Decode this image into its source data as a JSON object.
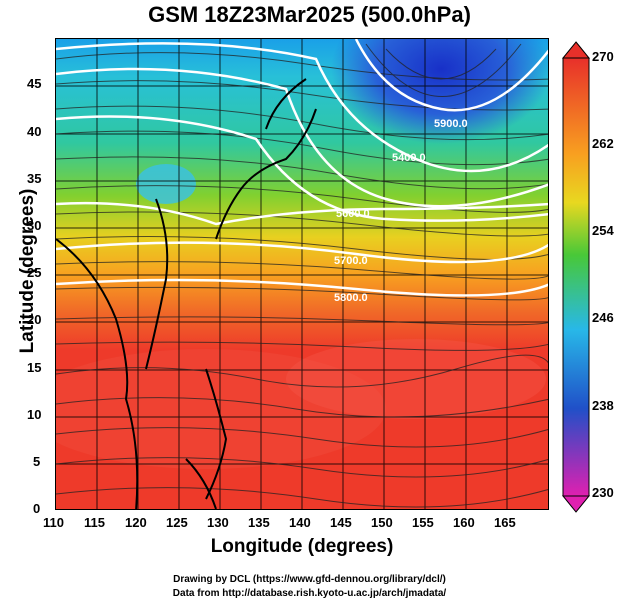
{
  "title": "GSM 18Z23Mar2025 (500.0hPa)",
  "xlabel": "Longitude (degrees)",
  "ylabel": "Latitude  (degrees)",
  "credits": [
    "Drawing by DCL (https://www.gfd-dennou.org/library/dcl/)",
    "Data from http://database.rish.kyoto-u.ac.jp/arch/jmadata/"
  ],
  "x_ticks": [
    "110",
    "115",
    "120",
    "125",
    "130",
    "135",
    "140",
    "145",
    "150",
    "155",
    "160",
    "165"
  ],
  "y_ticks": [
    "0",
    "5",
    "10",
    "15",
    "20",
    "25",
    "30",
    "35",
    "40",
    "45"
  ],
  "colorbar": {
    "ticks": [
      "270",
      "262",
      "254",
      "246",
      "238",
      "230"
    ],
    "colors": [
      "#e8302a",
      "#f8a020",
      "#48c838",
      "#28b8e8",
      "#2050c8",
      "#e020b0"
    ]
  },
  "contour_labels": [
    "5900.0",
    "5400.0",
    "5600.0",
    "5700.0",
    "5800.0"
  ],
  "chart_data": {
    "type": "heatmap",
    "title": "GSM 18Z23Mar2025 (500.0hPa)",
    "xlabel": "Longitude (degrees)",
    "ylabel": "Latitude  (degrees)",
    "xlim": [
      110,
      170
    ],
    "ylim": [
      0,
      50
    ],
    "colorbar_range": [
      230,
      270
    ],
    "contours": [
      {
        "label": "5400.0"
      },
      {
        "label": "5600.0"
      },
      {
        "label": "5700.0"
      },
      {
        "label": "5800.0"
      },
      {
        "label": "5900.0"
      }
    ]
  }
}
